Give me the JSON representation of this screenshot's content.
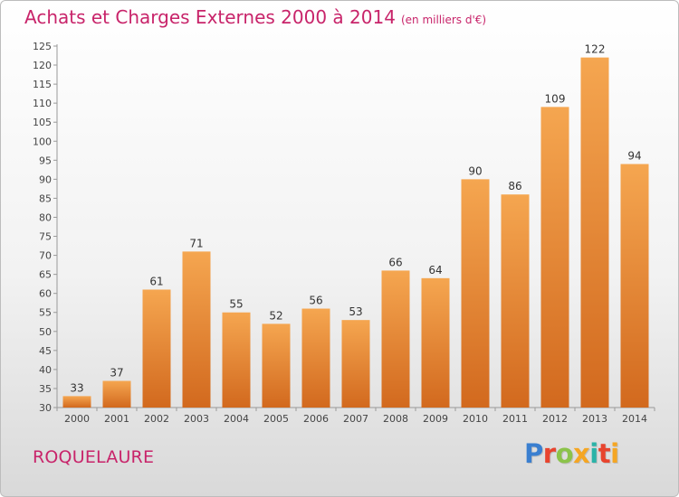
{
  "header": {
    "title": "Achats et Charges Externes 2000 à 2014",
    "subtitle": "(en milliers d'€)"
  },
  "place_name": "ROQUELAURE",
  "logo": {
    "text": "Proxiti",
    "colors": [
      "#3a7fd0",
      "#e8442e",
      "#8bc34a",
      "#f5a623",
      "#2bb3a8",
      "#e8442e",
      "#f5a623"
    ]
  },
  "colors": {
    "title": "#c8246a",
    "bar_light": "#f5a650",
    "bar_dark": "#d2691e"
  },
  "chart_data": {
    "type": "bar",
    "title": "Achats et Charges Externes 2000 à 2014",
    "subtitle": "(en milliers d'€)",
    "categories": [
      "2000",
      "2001",
      "2002",
      "2003",
      "2004",
      "2005",
      "2006",
      "2007",
      "2008",
      "2009",
      "2010",
      "2011",
      "2012",
      "2013",
      "2014"
    ],
    "values": [
      33,
      37,
      61,
      71,
      55,
      52,
      56,
      53,
      66,
      64,
      90,
      86,
      109,
      122,
      94
    ],
    "ylim": [
      30,
      125
    ],
    "yticks": [
      30,
      35,
      40,
      45,
      50,
      55,
      60,
      65,
      70,
      75,
      80,
      85,
      90,
      95,
      100,
      105,
      110,
      115,
      120,
      125
    ],
    "grid": false,
    "data_labels": true
  }
}
